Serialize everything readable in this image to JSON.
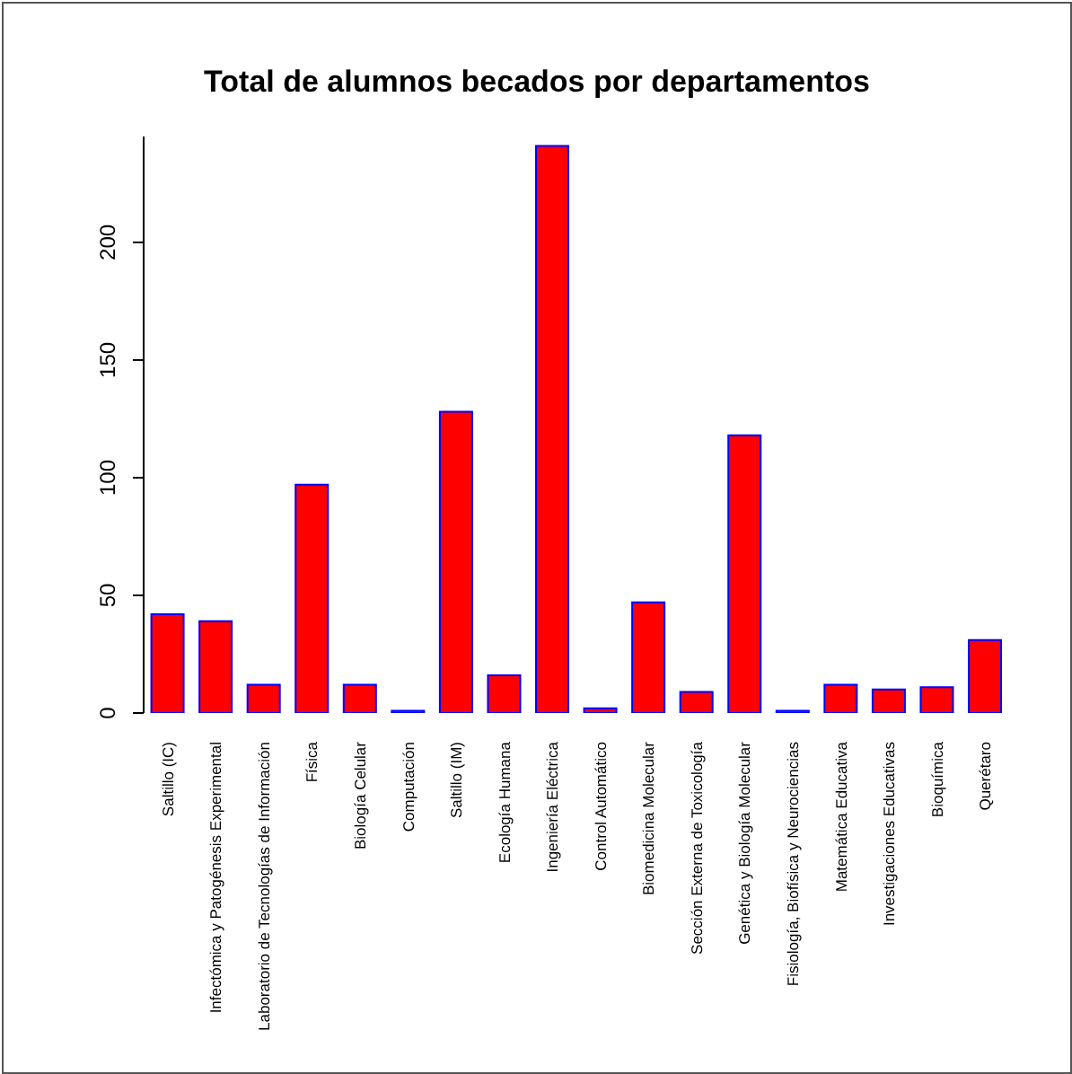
{
  "chart_data": {
    "type": "bar",
    "title": "Total de alumnos becados por departamentos",
    "categories": [
      "Saltillo (IC)",
      "Infectómica y Patogénesis Experimental",
      "Laboratorio de Tecnologías de Información",
      "Física",
      "Biología Celular",
      "Computación",
      "Saltillo (IM)",
      "Ecología Humana",
      "Ingeniería Eléctrica",
      "Control Automático",
      "Biomedicina Molecular",
      "Sección Externa de Toxicología",
      "Genética y Biología Molecular",
      "Fisiología, Biofísica y Neurociencias",
      "Matemática Educativa",
      "Investigaciones Educativas",
      "Bioquímica",
      "Querétaro"
    ],
    "values": [
      42,
      39,
      12,
      97,
      12,
      1,
      128,
      16,
      241,
      2,
      47,
      9,
      118,
      1,
      12,
      10,
      11,
      31
    ],
    "color": "#ff0000",
    "ylim": [
      0,
      245
    ],
    "yticks": [
      0,
      50,
      100,
      150,
      200
    ],
    "grid": false,
    "legend": false
  }
}
